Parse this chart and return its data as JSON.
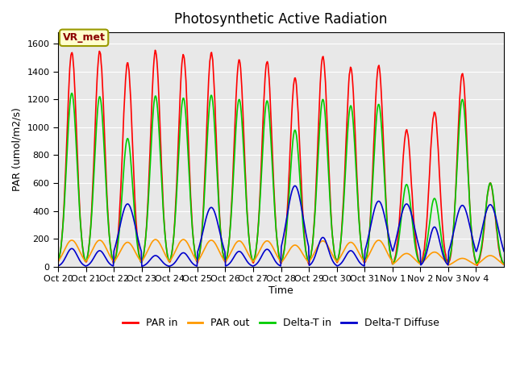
{
  "title": "Photosynthetic Active Radiation",
  "ylabel": "PAR (umol/m2/s)",
  "xlabel": "Time",
  "annotation": "VR_met",
  "ylim": [
    0,
    1680
  ],
  "yticks": [
    0,
    200,
    400,
    600,
    800,
    1000,
    1200,
    1400,
    1600
  ],
  "xtick_labels": [
    "Oct 20",
    "Oct 21",
    "Oct 22",
    "Oct 23",
    "Oct 24",
    "Oct 25",
    "Oct 26",
    "Oct 27",
    "Oct 28",
    "Oct 29",
    "Oct 30",
    "Oct 31",
    "Nov 1",
    "Nov 2",
    "Nov 3",
    "Nov 4"
  ],
  "colors": {
    "PAR in": "#ff0000",
    "PAR out": "#ff9900",
    "Delta-T in": "#00cc00",
    "Delta-T Diffuse": "#0000cc"
  },
  "legend_labels": [
    "PAR in",
    "PAR out",
    "Delta-T in",
    "Delta-T Diffuse"
  ],
  "background_color": "#e8e8e8",
  "fig_background": "#ffffff",
  "n_days": 16,
  "day_peaks_par_in": [
    1540,
    1540,
    1460,
    1545,
    1520,
    1540,
    1480,
    1470,
    1355,
    1510,
    1430,
    1440,
    980,
    1110,
    1385,
    600
  ],
  "day_peaks_par_out": [
    190,
    190,
    175,
    195,
    195,
    190,
    185,
    185,
    155,
    185,
    175,
    190,
    95,
    105,
    60,
    80
  ],
  "day_peaks_delta_t_in": [
    1245,
    1220,
    920,
    1225,
    1210,
    1230,
    1200,
    1190,
    980,
    1200,
    1155,
    1165,
    590,
    490,
    1200,
    600
  ],
  "day_peaks_delta_t_diffuse": [
    130,
    115,
    450,
    80,
    100,
    425,
    110,
    125,
    580,
    210,
    115,
    470,
    450,
    285,
    440,
    445
  ],
  "line_width": 1.2
}
